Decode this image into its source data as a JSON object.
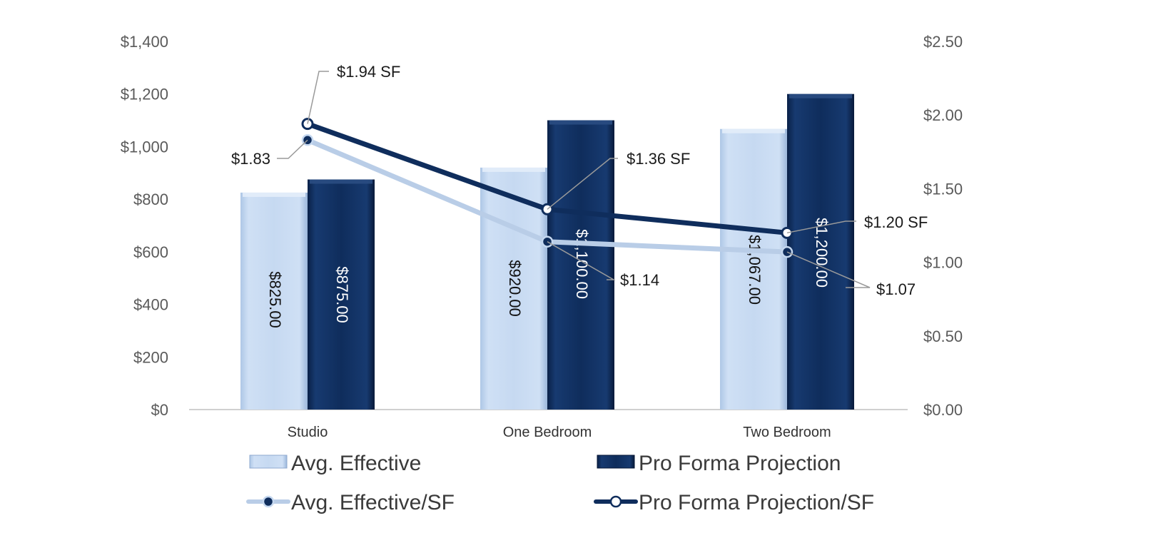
{
  "chart_data": {
    "type": "bar",
    "categories": [
      "Studio",
      "One Bedroom",
      "Two Bedroom"
    ],
    "series": [
      {
        "name": "Avg. Effective",
        "kind": "bar",
        "axis": "left",
        "values": [
          825,
          920,
          1067
        ],
        "labels": [
          "$825.00",
          "$920.00",
          "$1,067.00"
        ],
        "color": "#c5d8f0"
      },
      {
        "name": "Pro Forma Projection",
        "kind": "bar",
        "axis": "left",
        "values": [
          875,
          1100,
          1200
        ],
        "labels": [
          "$875.00",
          "$1,100.00",
          "$1,200.00"
        ],
        "color": "#0f2d5c"
      },
      {
        "name": "Avg. Effective/SF",
        "kind": "line",
        "axis": "right",
        "values": [
          1.83,
          1.14,
          1.07
        ],
        "labels": [
          "$1.83",
          "$1.14",
          "$1.07"
        ],
        "color": "#b5cbe6"
      },
      {
        "name": "Pro Forma Projection/SF",
        "kind": "line",
        "axis": "right",
        "values": [
          1.94,
          1.36,
          1.2
        ],
        "labels": [
          "$1.94 SF",
          "$1.36 SF",
          "$1.20 SF"
        ],
        "color": "#0f2d5c"
      }
    ],
    "y_left": {
      "min": 0,
      "max": 1400,
      "step": 200,
      "ticks": [
        "$0",
        "$200",
        "$400",
        "$600",
        "$800",
        "$1,000",
        "$1,200",
        "$1,400"
      ]
    },
    "y_right": {
      "min": 0,
      "max": 2.5,
      "step": 0.5,
      "ticks": [
        "$0.00",
        "$0.50",
        "$1.00",
        "$1.50",
        "$2.00",
        "$2.50"
      ]
    },
    "legend_position": "bottom",
    "grid": false
  }
}
